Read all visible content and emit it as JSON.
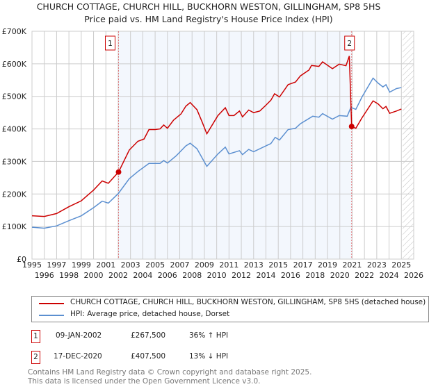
{
  "chart_data": {
    "type": "line",
    "title": "CHURCH COTTAGE, CHURCH HILL, BUCKHORN WESTON, GILLINGHAM, SP8 5HS",
    "subtitle": "Price paid vs. HM Land Registry's House Price Index (HPI)",
    "xlim": [
      1995,
      2026
    ],
    "ylim": [
      0,
      700000
    ],
    "x_ticks": [
      "1995",
      "1996",
      "1997",
      "1998",
      "1999",
      "2000",
      "2001",
      "2002",
      "2003",
      "2004",
      "2005",
      "2006",
      "2007",
      "2008",
      "2009",
      "2010",
      "2011",
      "2012",
      "2013",
      "2014",
      "2015",
      "2016",
      "2017",
      "2018",
      "2019",
      "2020",
      "2021",
      "2022",
      "2023",
      "2024",
      "2025",
      "2026"
    ],
    "y_ticks": [
      {
        "v": 0,
        "label": "£0"
      },
      {
        "v": 100000,
        "label": "£100K"
      },
      {
        "v": 200000,
        "label": "£200K"
      },
      {
        "v": 300000,
        "label": "£300K"
      },
      {
        "v": 400000,
        "label": "£400K"
      },
      {
        "v": 500000,
        "label": "£500K"
      },
      {
        "v": 600000,
        "label": "£600K"
      },
      {
        "v": 700000,
        "label": "£700K"
      }
    ],
    "grid": true,
    "shaded_range": [
      2002.03,
      2020.96
    ],
    "forecast_hatch_from": 2025.1,
    "series": [
      {
        "name": "CHURCH COTTAGE, CHURCH HILL, BUCKHORN WESTON, GILLINGHAM, SP8 5HS (detached house)",
        "color": "#cc0000",
        "x": [
          1995,
          1996,
          1997,
          1998,
          1999,
          2000,
          2000.7,
          2001.2,
          2002.03,
          2002.9,
          2003.6,
          2004.1,
          2004.5,
          2005,
          2005.4,
          2005.7,
          2006,
          2006.5,
          2007.1,
          2007.5,
          2007.85,
          2008.4,
          2008.8,
          2009.2,
          2009.7,
          2010.1,
          2010.7,
          2011,
          2011.4,
          2011.85,
          2012.1,
          2012.6,
          2013,
          2013.5,
          2014,
          2014.4,
          2014.7,
          2015.1,
          2015.8,
          2016.4,
          2016.8,
          2017.5,
          2017.7,
          2018.3,
          2018.6,
          2019.4,
          2019.95,
          2020.5,
          2020.77,
          2020.96,
          2021.3,
          2021.8,
          2022.7,
          2023.1,
          2023.5,
          2023.75,
          2024.05,
          2024.6,
          2025.0
        ],
        "y": [
          133000,
          131000,
          140000,
          161000,
          179000,
          212000,
          240000,
          233000,
          267500,
          335000,
          362000,
          369000,
          398000,
          398000,
          400000,
          412000,
          402000,
          427000,
          446000,
          470000,
          481000,
          459000,
          423000,
          385000,
          416000,
          441000,
          465000,
          441000,
          441000,
          455000,
          437000,
          458000,
          450000,
          455000,
          473000,
          488000,
          508000,
          498000,
          536000,
          544000,
          563000,
          581000,
          595000,
          592000,
          606000,
          585000,
          599000,
          594000,
          624000,
          407500,
          402000,
          434000,
          486000,
          477000,
          462000,
          469000,
          448000,
          455000,
          461000
        ]
      },
      {
        "name": "HPI: Average price, detached house, Dorset",
        "color": "#5b8fd0",
        "x": [
          1995,
          1996,
          1997,
          1998,
          1999,
          2000,
          2000.7,
          2001.2,
          2002,
          2002.9,
          2003.6,
          2004.5,
          2005.4,
          2005.7,
          2006,
          2006.7,
          2007.5,
          2007.85,
          2008.4,
          2009.2,
          2010.1,
          2010.7,
          2011,
          2011.85,
          2012.1,
          2012.6,
          2013,
          2014,
          2014.4,
          2014.75,
          2015.1,
          2015.8,
          2016.4,
          2016.8,
          2017.8,
          2018.3,
          2018.6,
          2019.4,
          2019.95,
          2020.6,
          2020.9,
          2021.3,
          2021.8,
          2022.7,
          2023.1,
          2023.5,
          2023.75,
          2024.05,
          2024.6,
          2025.0
        ],
        "y": [
          98000,
          95000,
          102000,
          118000,
          133000,
          158000,
          178000,
          172000,
          201000,
          247000,
          269000,
          294000,
          294000,
          303000,
          295000,
          317000,
          348000,
          356000,
          339000,
          285000,
          323000,
          344000,
          323000,
          333000,
          321000,
          337000,
          330000,
          348000,
          355000,
          374000,
          366000,
          398000,
          402000,
          416000,
          439000,
          436000,
          447000,
          430000,
          441000,
          439000,
          466000,
          460000,
          498000,
          556000,
          541000,
          529000,
          536000,
          513000,
          524000,
          527000
        ]
      }
    ],
    "annotations": [
      {
        "label": "1",
        "x": 2002.03,
        "y": 267500
      },
      {
        "label": "2",
        "x": 2020.96,
        "y": 407500
      }
    ]
  },
  "legend": {
    "items": [
      {
        "label": "CHURCH COTTAGE, CHURCH HILL, BUCKHORN WESTON, GILLINGHAM, SP8 5HS (detached house)",
        "color": "#cc0000"
      },
      {
        "label": "HPI: Average price, detached house, Dorset",
        "color": "#5b8fd0"
      }
    ]
  },
  "transactions": [
    {
      "num": "1",
      "date": "09-JAN-2002",
      "price": "£267,500",
      "hpi": "36% ↑ HPI"
    },
    {
      "num": "2",
      "date": "17-DEC-2020",
      "price": "£407,500",
      "hpi": "13% ↓ HPI"
    }
  ],
  "footer": {
    "line1": "Contains HM Land Registry data © Crown copyright and database right 2025.",
    "line2": "This data is licensed under the Open Government Licence v3.0."
  }
}
